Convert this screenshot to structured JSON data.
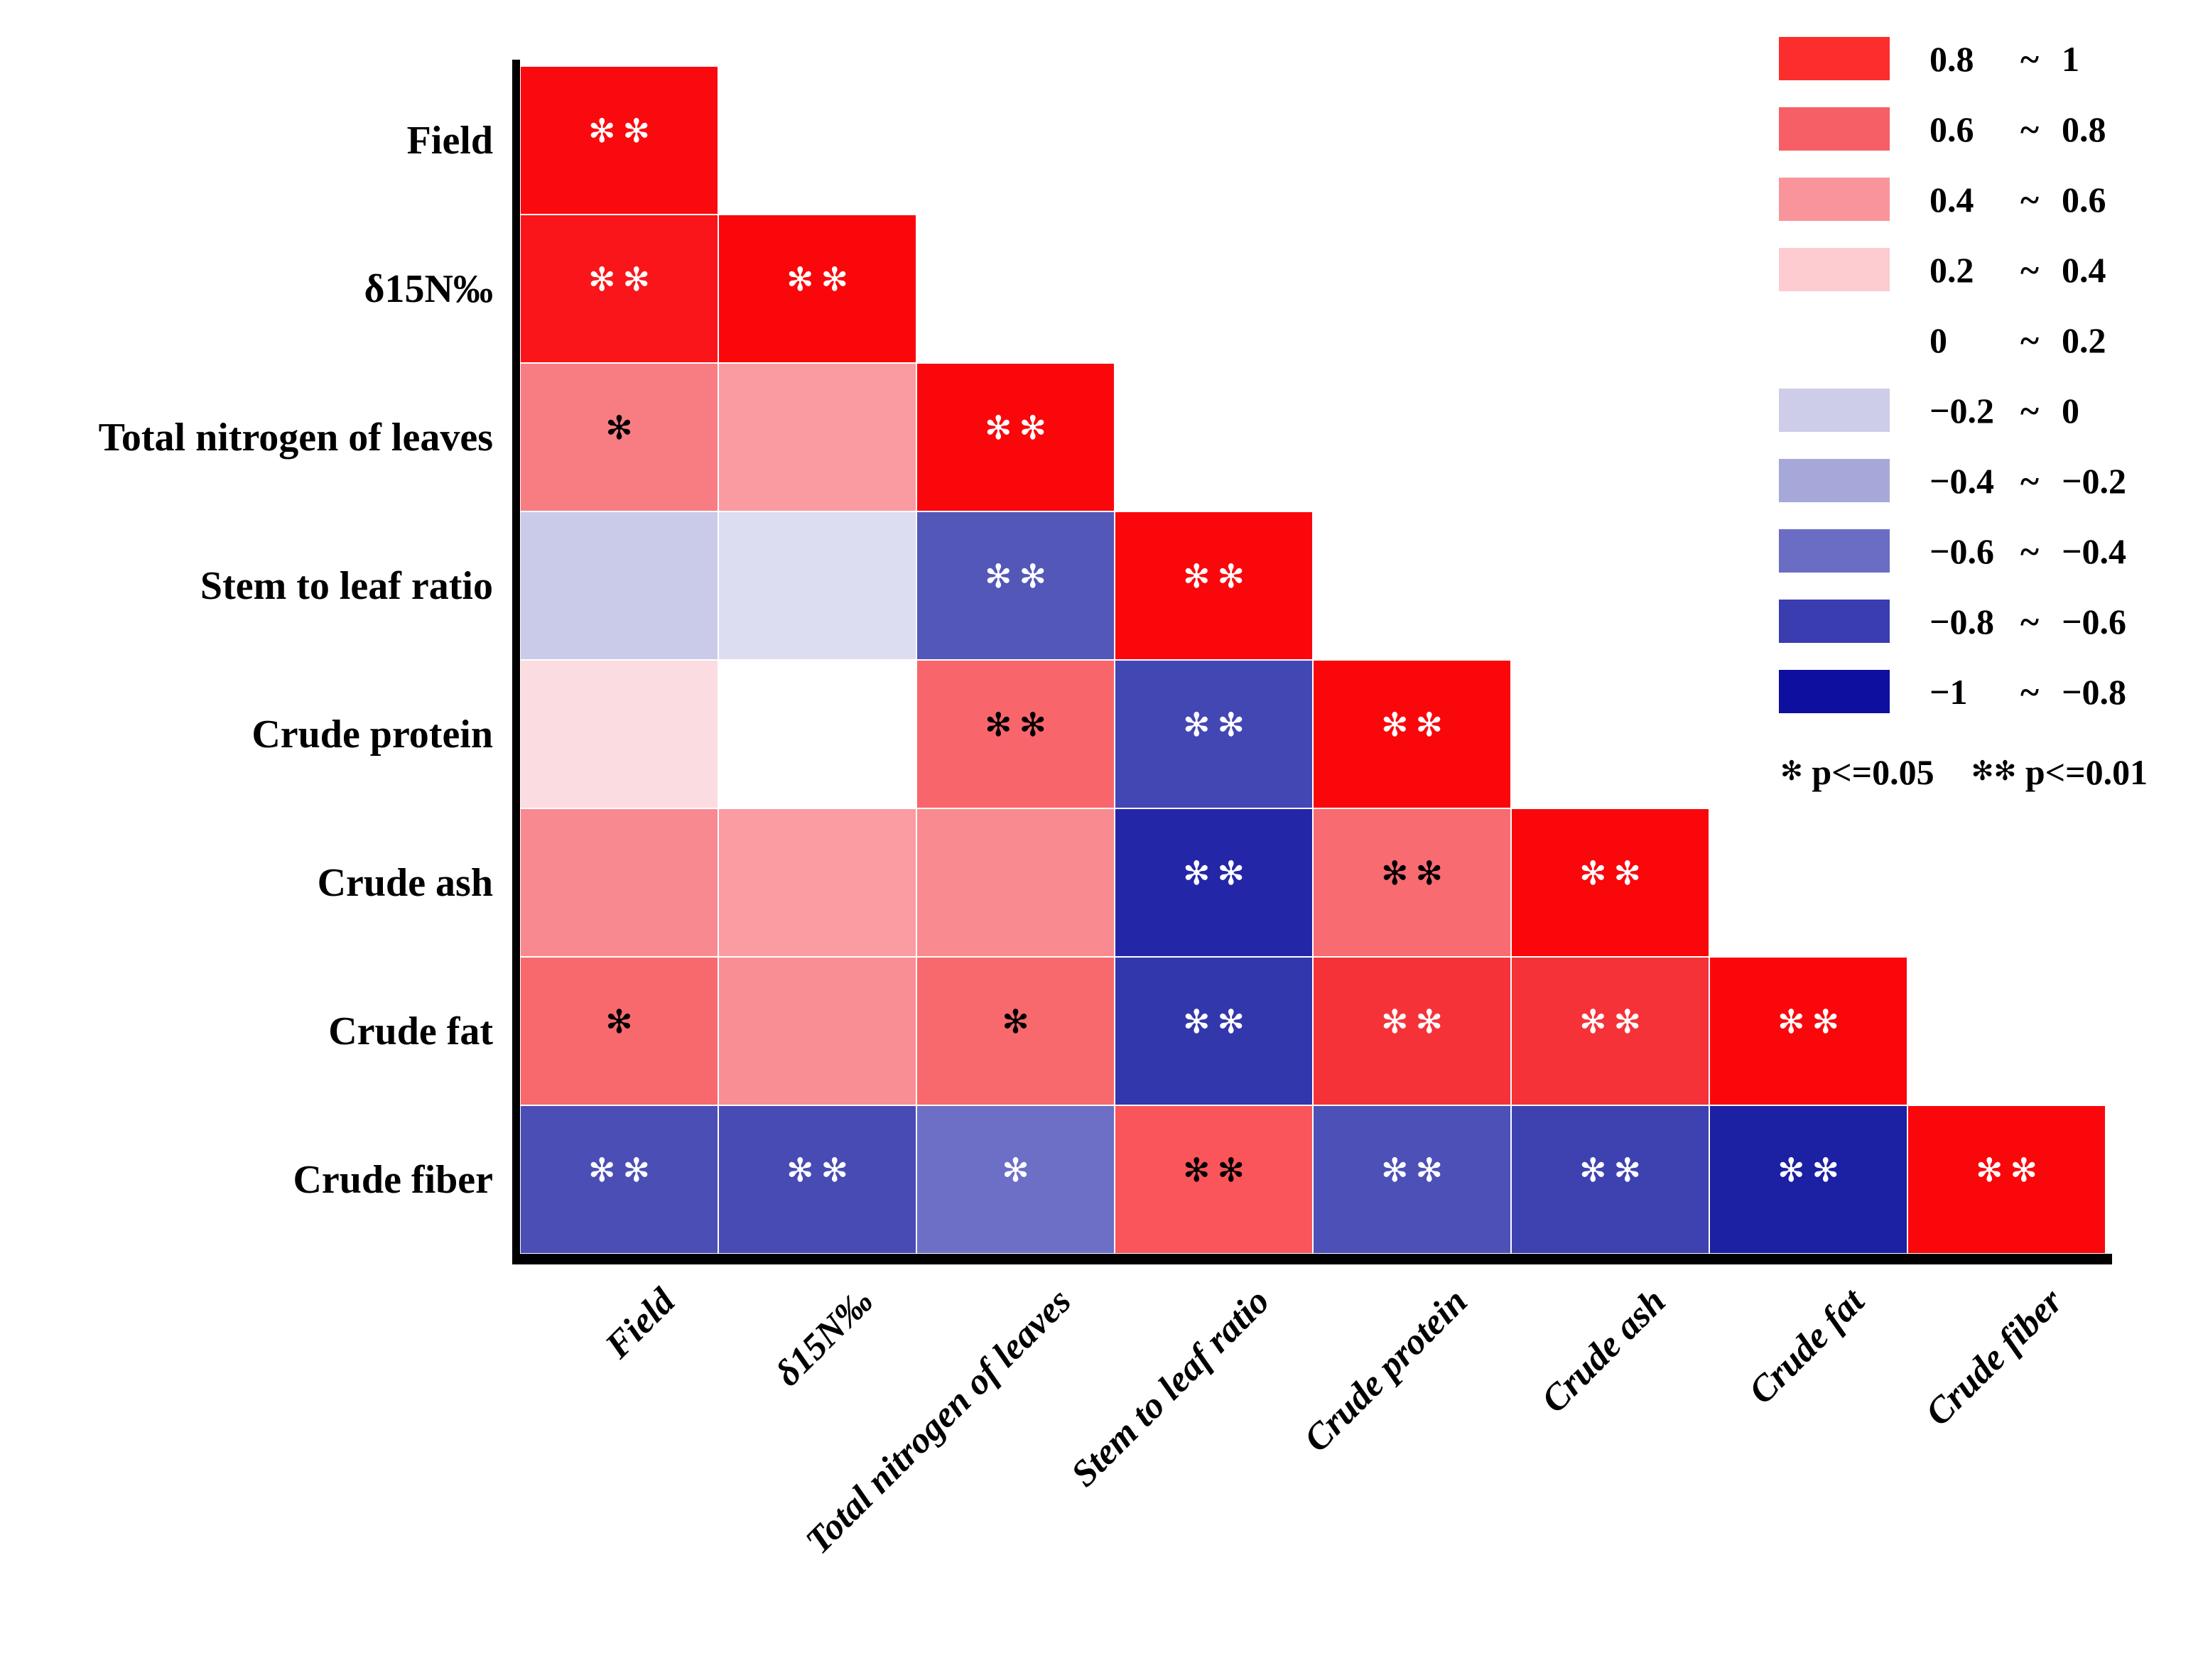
{
  "chart_data": {
    "type": "heatmap",
    "title": "",
    "variables": [
      "Field",
      "δ15N‰",
      "Total nitrogen  of leaves",
      "Stem to leaf ratio",
      "Crude protein",
      "Crude ash",
      "Crude fat",
      "Crude fiber"
    ],
    "layout_hints": {
      "shape": "lower-triangular correlation matrix",
      "grid": "off",
      "legend_position": "top-right"
    },
    "legend": {
      "bins": [
        {
          "lo": "0.8",
          "hi": "1",
          "color": "#FC2D2D"
        },
        {
          "lo": "0.6",
          "hi": "0.8",
          "color": "#F75F66"
        },
        {
          "lo": "0.4",
          "hi": "0.6",
          "color": "#F9959A"
        },
        {
          "lo": "0.2",
          "hi": "0.4",
          "color": "#FCCCD0"
        },
        {
          "lo": "0",
          "hi": "0.2",
          "color": "#FFFFFF"
        },
        {
          "lo": "−0.2",
          "hi": "0",
          "color": "#CDCDEA"
        },
        {
          "lo": "−0.4",
          "hi": "−0.2",
          "color": "#A7A8DA"
        },
        {
          "lo": "−0.6",
          "hi": "−0.4",
          "color": "#6B6DC4"
        },
        {
          "lo": "−0.8",
          "hi": "−0.6",
          "color": "#3A3DAF"
        },
        {
          "lo": "−1",
          "hi": "−0.8",
          "color": "#0E0F9F"
        }
      ],
      "note": {
        "star1": "✻",
        "sig1": "p<=0.05",
        "star2": "✻✻",
        "sig2": "p<=0.01"
      }
    },
    "cells": [
      {
        "row": 1,
        "col": 1,
        "row_var": "Field",
        "col_var": "Field",
        "r_bin": "0.8~1",
        "approx_r": 1.0,
        "sig": "**",
        "sig_color": "#FFFFFF",
        "color": "#FA0A0E"
      },
      {
        "row": 2,
        "col": 1,
        "row_var": "δ15N‰",
        "col_var": "Field",
        "r_bin": "0.8~1",
        "approx_r": 0.95,
        "sig": "**",
        "sig_color": "#FFFFFF",
        "color": "#F9151A"
      },
      {
        "row": 2,
        "col": 2,
        "row_var": "δ15N‰",
        "col_var": "δ15N‰",
        "r_bin": "0.8~1",
        "approx_r": 1.0,
        "sig": "**",
        "sig_color": "#FFFFFF",
        "color": "#FA070C"
      },
      {
        "row": 3,
        "col": 1,
        "row_var": "Total nitrogen  of leaves",
        "col_var": "Field",
        "r_bin": "0.4~0.6",
        "approx_r": 0.55,
        "sig": "*",
        "sig_color": "#000000",
        "color": "#F87D82"
      },
      {
        "row": 3,
        "col": 2,
        "row_var": "Total nitrogen  of leaves",
        "col_var": "δ15N‰",
        "r_bin": "0.4~0.6",
        "approx_r": 0.45,
        "sig": "",
        "sig_color": "",
        "color": "#FA9BA0"
      },
      {
        "row": 3,
        "col": 3,
        "row_var": "Total nitrogen  of leaves",
        "col_var": "Total nitrogen  of leaves",
        "r_bin": "0.8~1",
        "approx_r": 1.0,
        "sig": "**",
        "sig_color": "#FFFFFF",
        "color": "#FA070C"
      },
      {
        "row": 4,
        "col": 1,
        "row_var": "Stem to leaf ratio",
        "col_var": "Field",
        "r_bin": "−0.2~0",
        "approx_r": -0.15,
        "sig": "",
        "sig_color": "",
        "color": "#C9CBE9"
      },
      {
        "row": 4,
        "col": 2,
        "row_var": "Stem to leaf ratio",
        "col_var": "δ15N‰",
        "r_bin": "−0.2~0",
        "approx_r": -0.08,
        "sig": "",
        "sig_color": "",
        "color": "#DCDDF1"
      },
      {
        "row": 4,
        "col": 3,
        "row_var": "Stem to leaf ratio",
        "col_var": "Total nitrogen  of leaves",
        "r_bin": "−0.6~−0.4",
        "approx_r": -0.55,
        "sig": "**",
        "sig_color": "#FFFFFF",
        "color": "#5357B8"
      },
      {
        "row": 4,
        "col": 4,
        "row_var": "Stem to leaf ratio",
        "col_var": "Stem to leaf ratio",
        "r_bin": "0.8~1",
        "approx_r": 1.0,
        "sig": "**",
        "sig_color": "#FFFFFF",
        "color": "#FA070C"
      },
      {
        "row": 5,
        "col": 1,
        "row_var": "Crude protein",
        "col_var": "Field",
        "r_bin": "0~0.2",
        "approx_r": 0.18,
        "sig": "",
        "sig_color": "",
        "color": "#FBDCE0"
      },
      {
        "row": 5,
        "col": 2,
        "row_var": "Crude protein",
        "col_var": "δ15N‰",
        "r_bin": "0~0.2",
        "approx_r": 0.02,
        "sig": "",
        "sig_color": "",
        "color": "#FFFFFF"
      },
      {
        "row": 5,
        "col": 3,
        "row_var": "Crude protein",
        "col_var": "Total nitrogen  of leaves",
        "r_bin": "0.6~0.8",
        "approx_r": 0.65,
        "sig": "**",
        "sig_color": "#000000",
        "color": "#F8666C"
      },
      {
        "row": 5,
        "col": 4,
        "row_var": "Crude protein",
        "col_var": "Stem to leaf ratio",
        "r_bin": "−0.8~−0.6",
        "approx_r": -0.62,
        "sig": "**",
        "sig_color": "#FFFFFF",
        "color": "#4347B4"
      },
      {
        "row": 5,
        "col": 5,
        "row_var": "Crude protein",
        "col_var": "Crude protein",
        "r_bin": "0.8~1",
        "approx_r": 1.0,
        "sig": "**",
        "sig_color": "#FFFFFF",
        "color": "#FA070C"
      },
      {
        "row": 6,
        "col": 1,
        "row_var": "Crude ash",
        "col_var": "Field",
        "r_bin": "0.4~0.6",
        "approx_r": 0.5,
        "sig": "",
        "sig_color": "",
        "color": "#F98990"
      },
      {
        "row": 6,
        "col": 2,
        "row_var": "Crude ash",
        "col_var": "δ15N‰",
        "r_bin": "0.4~0.6",
        "approx_r": 0.45,
        "sig": "",
        "sig_color": "",
        "color": "#FA9CA1"
      },
      {
        "row": 6,
        "col": 3,
        "row_var": "Crude ash",
        "col_var": "Total nitrogen  of leaves",
        "r_bin": "0.4~0.6",
        "approx_r": 0.5,
        "sig": "",
        "sig_color": "",
        "color": "#F98A8F"
      },
      {
        "row": 6,
        "col": 4,
        "row_var": "Crude ash",
        "col_var": "Stem to leaf ratio",
        "r_bin": "−1~−0.8",
        "approx_r": -0.85,
        "sig": "**",
        "sig_color": "#FFFFFF",
        "color": "#2327A7"
      },
      {
        "row": 6,
        "col": 5,
        "row_var": "Crude ash",
        "col_var": "Crude protein",
        "r_bin": "0.6~0.8",
        "approx_r": 0.6,
        "sig": "**",
        "sig_color": "#000000",
        "color": "#F76B71"
      },
      {
        "row": 6,
        "col": 6,
        "row_var": "Crude ash",
        "col_var": "Crude ash",
        "r_bin": "0.8~1",
        "approx_r": 1.0,
        "sig": "**",
        "sig_color": "#FFFFFF",
        "color": "#FA070C"
      },
      {
        "row": 7,
        "col": 1,
        "row_var": "Crude fat",
        "col_var": "Field",
        "r_bin": "0.6~0.8",
        "approx_r": 0.62,
        "sig": "*",
        "sig_color": "#000000",
        "color": "#F8696E"
      },
      {
        "row": 7,
        "col": 2,
        "row_var": "Crude fat",
        "col_var": "δ15N‰",
        "r_bin": "0.4~0.6",
        "approx_r": 0.48,
        "sig": "",
        "sig_color": "",
        "color": "#F98F94"
      },
      {
        "row": 7,
        "col": 3,
        "row_var": "Crude fat",
        "col_var": "Total nitrogen  of leaves",
        "r_bin": "0.6~0.8",
        "approx_r": 0.62,
        "sig": "*",
        "sig_color": "#000000",
        "color": "#F8696E"
      },
      {
        "row": 7,
        "col": 4,
        "row_var": "Crude fat",
        "col_var": "Stem to leaf ratio",
        "r_bin": "−0.8~−0.6",
        "approx_r": -0.75,
        "sig": "**",
        "sig_color": "#FFFFFF",
        "color": "#3337AC"
      },
      {
        "row": 7,
        "col": 5,
        "row_var": "Crude fat",
        "col_var": "Crude protein",
        "r_bin": "0.8~1",
        "approx_r": 0.82,
        "sig": "**",
        "sig_color": "#FFFFFF",
        "color": "#F53238"
      },
      {
        "row": 7,
        "col": 6,
        "row_var": "Crude fat",
        "col_var": "Crude ash",
        "r_bin": "0.8~1",
        "approx_r": 0.82,
        "sig": "**",
        "sig_color": "#FFFFFF",
        "color": "#F53238"
      },
      {
        "row": 7,
        "col": 7,
        "row_var": "Crude fat",
        "col_var": "Crude fat",
        "r_bin": "0.8~1",
        "approx_r": 1.0,
        "sig": "**",
        "sig_color": "#FFFFFF",
        "color": "#FA070C"
      },
      {
        "row": 8,
        "col": 1,
        "row_var": "Crude fiber",
        "col_var": "Field",
        "r_bin": "−0.6~−0.4",
        "approx_r": -0.58,
        "sig": "**",
        "sig_color": "#FFFFFF",
        "color": "#4B4EB5"
      },
      {
        "row": 8,
        "col": 2,
        "row_var": "Crude fiber",
        "col_var": "δ15N‰",
        "r_bin": "−0.6~−0.4",
        "approx_r": -0.6,
        "sig": "**",
        "sig_color": "#FFFFFF",
        "color": "#484BB3"
      },
      {
        "row": 8,
        "col": 3,
        "row_var": "Crude fiber",
        "col_var": "Total nitrogen  of leaves",
        "r_bin": "−0.6~−0.4",
        "approx_r": -0.45,
        "sig": "*",
        "sig_color": "#FFFFFF",
        "color": "#6C6FC5"
      },
      {
        "row": 8,
        "col": 4,
        "row_var": "Crude fiber",
        "col_var": "Stem to leaf ratio",
        "r_bin": "0.6~0.8",
        "approx_r": 0.68,
        "sig": "**",
        "sig_color": "#000000",
        "color": "#FA555B"
      },
      {
        "row": 8,
        "col": 5,
        "row_var": "Crude fiber",
        "col_var": "Crude protein",
        "r_bin": "−0.6~−0.4",
        "approx_r": -0.58,
        "sig": "**",
        "sig_color": "#FFFFFF",
        "color": "#4D50B6"
      },
      {
        "row": 8,
        "col": 6,
        "row_var": "Crude fiber",
        "col_var": "Crude ash",
        "r_bin": "−0.8~−0.6",
        "approx_r": -0.7,
        "sig": "**",
        "sig_color": "#FFFFFF",
        "color": "#3E42B0"
      },
      {
        "row": 8,
        "col": 7,
        "row_var": "Crude fiber",
        "col_var": "Crude fat",
        "r_bin": "−1~−0.8",
        "approx_r": -0.87,
        "sig": "**",
        "sig_color": "#FFFFFF",
        "color": "#1C20A3"
      },
      {
        "row": 8,
        "col": 8,
        "row_var": "Crude fiber",
        "col_var": "Crude fiber",
        "r_bin": "0.8~1",
        "approx_r": 1.0,
        "sig": "**",
        "sig_color": "#FFFFFF",
        "color": "#FA070C"
      }
    ]
  }
}
